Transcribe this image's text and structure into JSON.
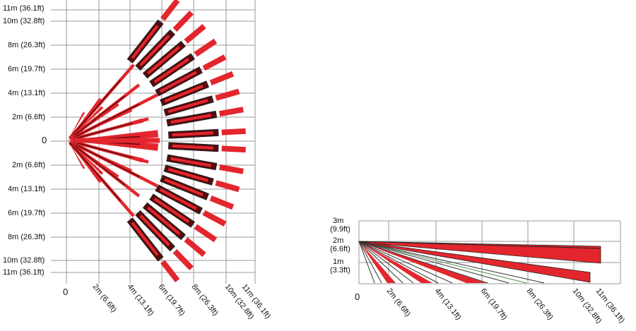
{
  "top_view": {
    "y_labels": [
      "11m (36.1ft)",
      "10m (32.8ft)",
      "8m (26.3ft)",
      "6m (19.7ft)",
      "4m (13.1ft)",
      "2m (6.6ft)",
      "0",
      "2m (6.6ft)",
      "4m (13.1ft)",
      "6m (19.7ft)",
      "8m (26.3ft)",
      "10m (32.8ft)",
      "11m (36.1ft)"
    ],
    "x_labels": [
      "0",
      "2m (6.6ft)",
      "4m (13.1ft)",
      "6m (19.7ft)",
      "8m (26.3ft)",
      "10m (32.8ft)",
      "11m (36.1ft)"
    ]
  },
  "side_view": {
    "y_labels": [
      {
        "value": "3m",
        "imperial": "(9.9ft)"
      },
      {
        "value": "2m",
        "imperial": "(6.6ft)"
      },
      {
        "value": "1m",
        "imperial": "(3.3ft)"
      }
    ],
    "x_labels": [
      "0",
      "2m (6.6ft)",
      "4m (13.1ft)",
      "6m (19.7ft)",
      "8m (26.3ft)",
      "10m (32.8ft)",
      "11m (36.1ft)"
    ]
  },
  "colors": {
    "beam_red": "#e3262d",
    "beam_dark": "#5a0a0c",
    "beam_outline": "#222222",
    "grid": "#9a9a9a",
    "beam_green": "#4d8a4d"
  }
}
